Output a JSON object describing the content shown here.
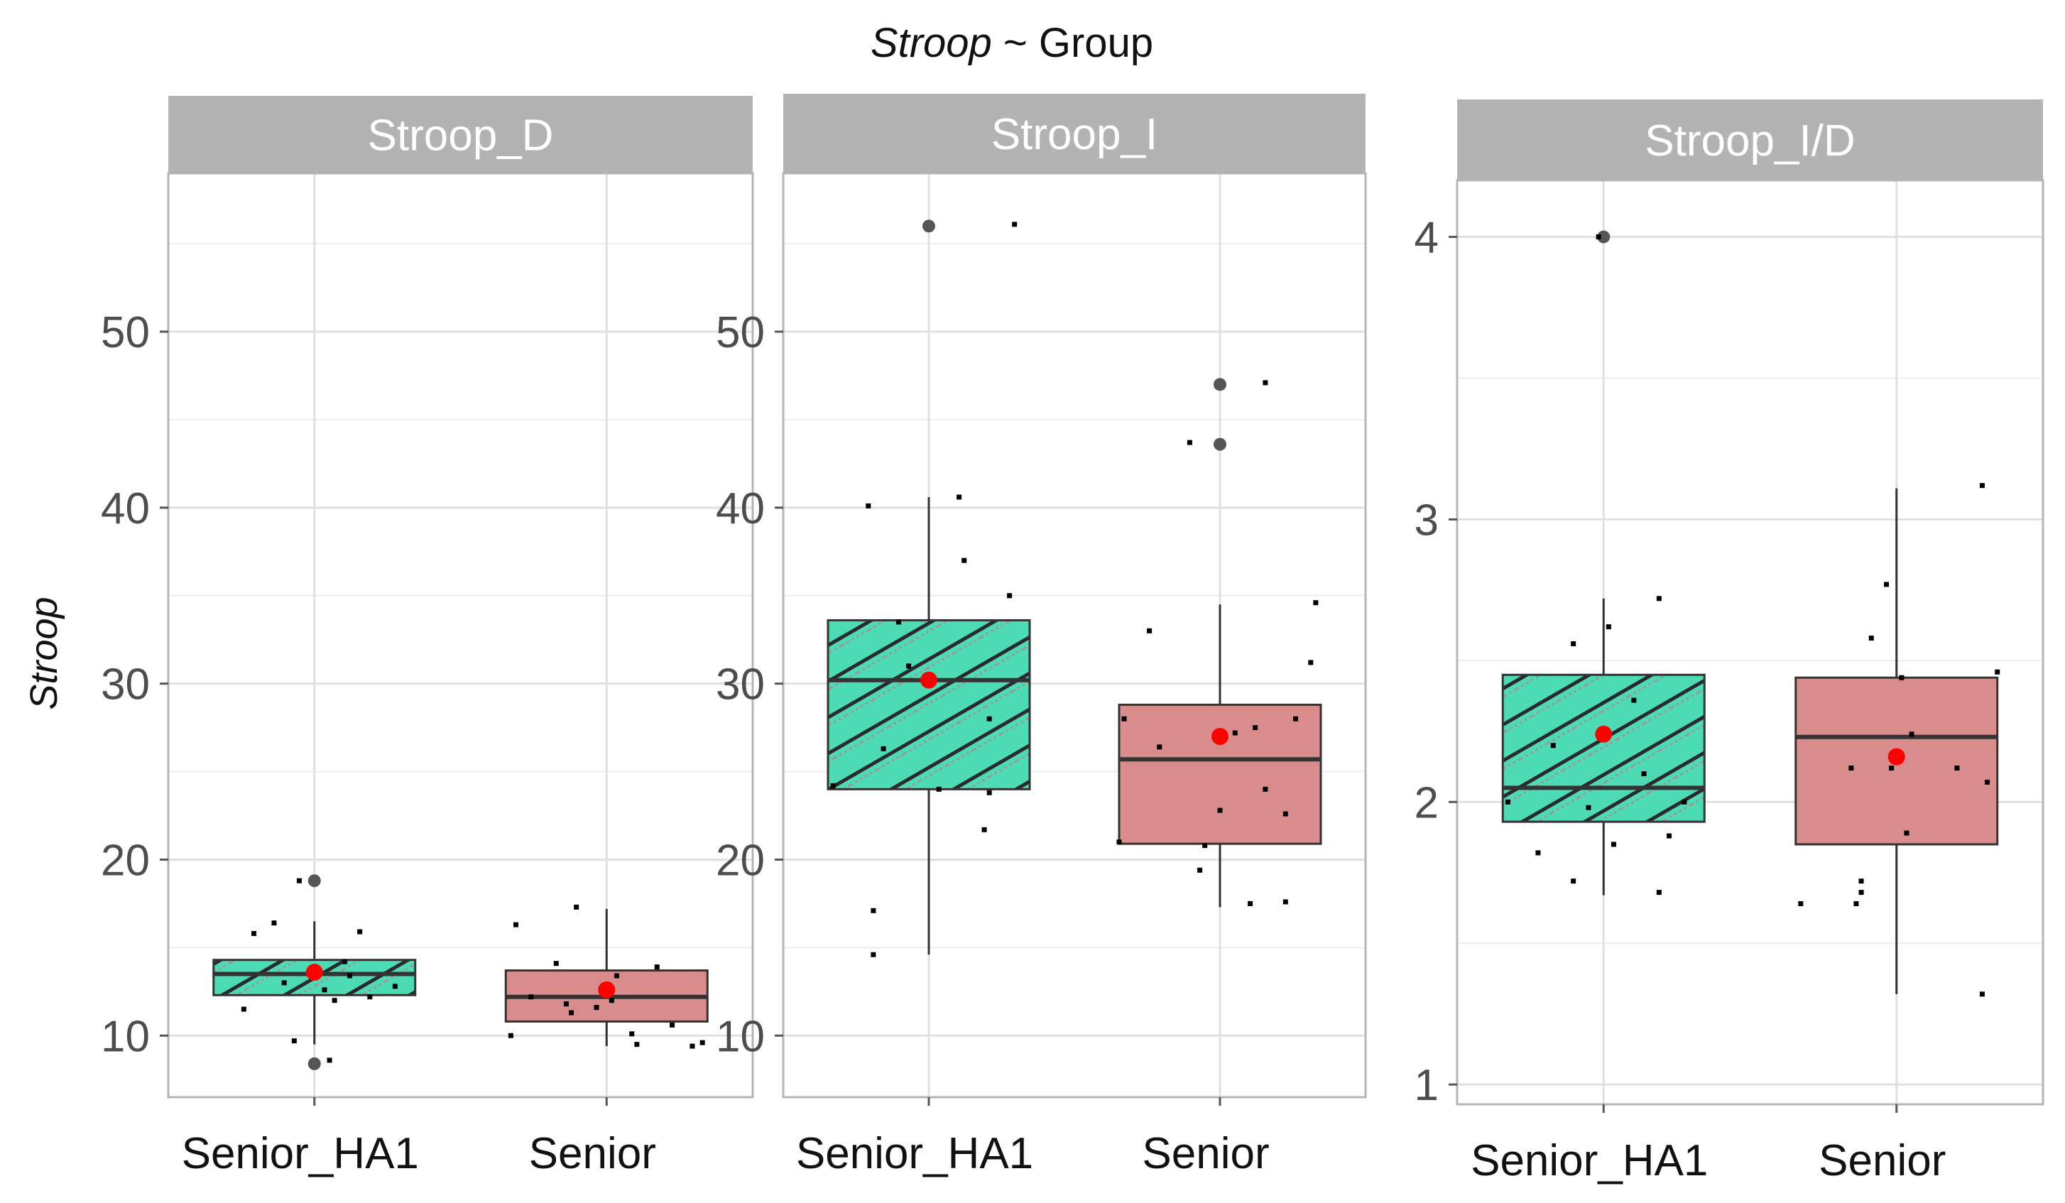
{
  "chart_data": {
    "type": "boxplot",
    "title": {
      "italic": "Stroop",
      "rest": " ~ Group"
    },
    "ylabel": "Stroop",
    "categories": [
      "Senior_HA1",
      "Senior"
    ],
    "colors": {
      "Senior_HA1": "#4ddbb6",
      "Senior": "#d98c8c",
      "mean": "#ff0000",
      "strip": "#b3b3b3",
      "grid": "#e0e0e0"
    },
    "panels": [
      {
        "name": "Stroop_D",
        "ylim": [
          6.5,
          59
        ],
        "yticks": [
          10,
          20,
          30,
          40,
          50
        ],
        "boxes": [
          {
            "group": "Senior_HA1",
            "q1": 12.3,
            "median": 13.5,
            "q3": 14.3,
            "whisker_low": 9.5,
            "whisker_high": 16.5,
            "mean": 13.6,
            "outliers": [
              18.8,
              8.4
            ],
            "points": [
              [
                -0.7,
                11.5
              ],
              [
                -0.6,
                15.8
              ],
              [
                -0.4,
                16.4
              ],
              [
                -0.2,
                9.7
              ],
              [
                -0.15,
                18.8
              ],
              [
                0.1,
                12.6
              ],
              [
                0.15,
                8.6
              ],
              [
                0.2,
                12.0
              ],
              [
                0.3,
                14.2
              ],
              [
                0.45,
                15.9
              ],
              [
                0.55,
                12.2
              ],
              [
                0.8,
                12.8
              ],
              [
                -0.3,
                13.0
              ],
              [
                0.35,
                13.4
              ]
            ]
          },
          {
            "group": "Senior",
            "q1": 10.8,
            "median": 12.2,
            "q3": 13.7,
            "whisker_low": 9.4,
            "whisker_high": 17.2,
            "mean": 12.6,
            "outliers": [],
            "points": [
              [
                -0.9,
                16.3
              ],
              [
                -0.95,
                10.0
              ],
              [
                -0.75,
                12.2
              ],
              [
                -0.5,
                14.1
              ],
              [
                -0.4,
                11.8
              ],
              [
                -0.35,
                11.3
              ],
              [
                -0.3,
                17.3
              ],
              [
                -0.1,
                11.6
              ],
              [
                0.05,
                12.0
              ],
              [
                0.1,
                13.4
              ],
              [
                0.25,
                10.1
              ],
              [
                0.3,
                9.5
              ],
              [
                0.5,
                13.9
              ],
              [
                0.85,
                9.4
              ],
              [
                0.95,
                9.6
              ],
              [
                0.65,
                10.6
              ]
            ]
          }
        ]
      },
      {
        "name": "Stroop_I",
        "ylim": [
          6.5,
          59
        ],
        "yticks": [
          10,
          20,
          30,
          40,
          50
        ],
        "boxes": [
          {
            "group": "Senior_HA1",
            "q1": 24.0,
            "median": 30.2,
            "q3": 33.6,
            "whisker_low": 14.6,
            "whisker_high": 40.6,
            "mean": 30.2,
            "outliers": [
              56.0
            ],
            "points": [
              [
                -0.95,
                24.2
              ],
              [
                -0.6,
                40.1
              ],
              [
                -0.55,
                17.1
              ],
              [
                -0.55,
                14.6
              ],
              [
                -0.45,
                26.3
              ],
              [
                -0.2,
                31.0
              ],
              [
                0.1,
                24.0
              ],
              [
                0.35,
                37.0
              ],
              [
                0.55,
                21.7
              ],
              [
                0.6,
                23.8
              ],
              [
                0.6,
                28.0
              ],
              [
                0.8,
                35.0
              ],
              [
                0.85,
                56.1
              ],
              [
                0.3,
                40.6
              ],
              [
                -0.3,
                33.5
              ]
            ]
          },
          {
            "group": "Senior",
            "q1": 20.9,
            "median": 25.7,
            "q3": 28.8,
            "whisker_low": 17.3,
            "whisker_high": 34.5,
            "mean": 27.0,
            "outliers": [
              47.0,
              43.6
            ],
            "points": [
              [
                -1.0,
                21.0
              ],
              [
                -0.95,
                28.0
              ],
              [
                -0.7,
                33.0
              ],
              [
                -0.6,
                26.4
              ],
              [
                -0.3,
                43.7
              ],
              [
                -0.2,
                19.4
              ],
              [
                -0.15,
                20.8
              ],
              [
                0.0,
                22.8
              ],
              [
                0.15,
                27.2
              ],
              [
                0.3,
                17.5
              ],
              [
                0.45,
                24.0
              ],
              [
                0.65,
                17.6
              ],
              [
                0.75,
                28.0
              ],
              [
                0.9,
                31.2
              ],
              [
                0.95,
                34.6
              ],
              [
                0.45,
                47.1
              ],
              [
                0.35,
                27.5
              ],
              [
                0.65,
                22.6
              ]
            ]
          }
        ]
      },
      {
        "name": "Stroop_I/D",
        "ylim": [
          0.93,
          4.2
        ],
        "yticks": [
          1,
          2,
          3,
          4
        ],
        "boxes": [
          {
            "group": "Senior_HA1",
            "q1": 1.93,
            "median": 2.05,
            "q3": 2.45,
            "whisker_low": 1.67,
            "whisker_high": 2.72,
            "mean": 2.24,
            "outliers": [
              4.0
            ],
            "points": [
              [
                -0.95,
                2.0
              ],
              [
                -0.65,
                1.82
              ],
              [
                -0.3,
                1.72
              ],
              [
                -0.3,
                2.56
              ],
              [
                -0.15,
                1.98
              ],
              [
                -0.05,
                4.0
              ],
              [
                0.05,
                2.62
              ],
              [
                0.1,
                1.85
              ],
              [
                0.3,
                2.36
              ],
              [
                0.55,
                2.72
              ],
              [
                0.55,
                1.68
              ],
              [
                0.65,
                1.88
              ],
              [
                0.8,
                2.0
              ],
              [
                -0.5,
                2.2
              ],
              [
                0.4,
                2.1
              ]
            ]
          },
          {
            "group": "Senior",
            "q1": 1.85,
            "median": 2.23,
            "q3": 2.44,
            "whisker_low": 1.32,
            "whisker_high": 3.11,
            "mean": 2.16,
            "outliers": [],
            "points": [
              [
                -0.95,
                1.64
              ],
              [
                -0.45,
                2.12
              ],
              [
                -0.4,
                1.64
              ],
              [
                -0.35,
                1.72
              ],
              [
                -0.25,
                2.58
              ],
              [
                -0.1,
                2.77
              ],
              [
                -0.05,
                2.12
              ],
              [
                0.05,
                2.44
              ],
              [
                0.1,
                1.89
              ],
              [
                0.15,
                2.24
              ],
              [
                0.85,
                3.12
              ],
              [
                0.85,
                1.32
              ],
              [
                0.9,
                2.07
              ],
              [
                1.0,
                2.46
              ],
              [
                -0.35,
                1.68
              ],
              [
                0.6,
                2.12
              ]
            ]
          }
        ]
      }
    ]
  }
}
